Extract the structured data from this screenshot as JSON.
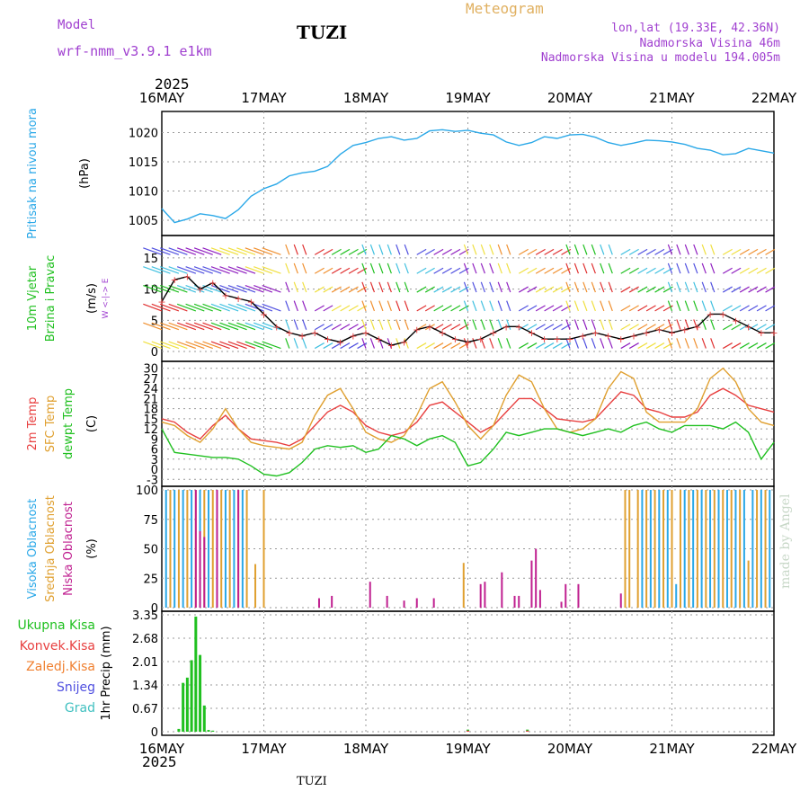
{
  "header": {
    "model_label": "Model",
    "model_name": "wrf-nmm_v3.9.1 e1km",
    "station": "TUZI",
    "product": "Meteogram",
    "lonlat": "lon,lat (19.33E, 42.36N)",
    "elevation": "Nadmorska Visina 46m",
    "model_elevation": "Nadmorska Visina u modelu 194.005m",
    "year_top": "2025",
    "year_bottom": "2025",
    "footer_station": "TUZI",
    "credit": "made by Angel"
  },
  "colors": {
    "pressure": "#2aa8e8",
    "temp2m": "#e84040",
    "sfc": "#e0a030",
    "dew": "#20c020",
    "high_cloud": "#2aa8e8",
    "mid_cloud": "#e0a030",
    "low_cloud": "#c02090",
    "precip_total": "#20c020",
    "precip_conv": "#e84040",
    "snow": "#5050e0",
    "hail": "#40c0c0"
  },
  "chart_data": {
    "type": "line",
    "x_dates": [
      "16MAY",
      "17MAY",
      "18MAY",
      "19MAY",
      "20MAY",
      "21MAY",
      "22MAY"
    ],
    "x_unit": "hours since 16MAY 00Z",
    "x_range": [
      0,
      144
    ],
    "panels": [
      {
        "id": "pressure",
        "labels": [
          "Pritisak na nivou mora"
        ],
        "unit": "(hPa)",
        "ylim": [
          1003,
          1023
        ],
        "yticks": [
          1005,
          1010,
          1015,
          1020
        ],
        "series": [
          {
            "name": "MSLP",
            "color": "#2aa8e8",
            "x": [
              0,
              3,
              6,
              9,
              12,
              15,
              18,
              21,
              24,
              27,
              30,
              33,
              36,
              39,
              42,
              45,
              48,
              51,
              54,
              57,
              60,
              63,
              66,
              69,
              72,
              75,
              78,
              81,
              84,
              87,
              90,
              93,
              96,
              99,
              102,
              105,
              108,
              111,
              114,
              117,
              120,
              123,
              126,
              129,
              132,
              135,
              138,
              141,
              144
            ],
            "y": [
              1007,
              1004.6,
              1005.2,
              1006.1,
              1005.8,
              1005.3,
              1006.8,
              1009.1,
              1010.4,
              1011.2,
              1012.6,
              1013.1,
              1013.4,
              1014.2,
              1016.3,
              1017.8,
              1018.3,
              1019.0,
              1019.3,
              1018.7,
              1019.0,
              1020.3,
              1020.5,
              1020.2,
              1020.4,
              1019.9,
              1019.6,
              1018.4,
              1017.8,
              1018.3,
              1019.3,
              1019.0,
              1019.6,
              1019.7,
              1019.2,
              1018.3,
              1017.8,
              1018.2,
              1018.7,
              1018.6,
              1018.4,
              1018.0,
              1017.3,
              1017.0,
              1016.2,
              1016.4,
              1017.3,
              1016.9,
              1016.5
            ]
          }
        ]
      },
      {
        "id": "wind",
        "labels": [
          "10m Vjetar",
          "Brzina i Pravac"
        ],
        "unit": "(m/s)",
        "compass": "W <-|-> E",
        "ylim": [
          -1,
          18
        ],
        "yticks": [
          0,
          5,
          10,
          15
        ],
        "series": [
          {
            "name": "wind speed",
            "color": "#000000",
            "x": [
              0,
              3,
              6,
              9,
              12,
              15,
              18,
              21,
              24,
              27,
              30,
              33,
              36,
              39,
              42,
              45,
              48,
              51,
              54,
              57,
              60,
              63,
              66,
              69,
              72,
              75,
              78,
              81,
              84,
              87,
              90,
              93,
              96,
              99,
              102,
              105,
              108,
              111,
              114,
              117,
              120,
              123,
              126,
              129,
              132,
              135,
              138,
              141,
              144
            ],
            "y": [
              8,
              11.5,
              12,
              10,
              11,
              9,
              8.5,
              8,
              6,
              4,
              3,
              2.5,
              3,
              2,
              1.5,
              2.5,
              3,
              2,
              1,
              1.5,
              3.5,
              4,
              3,
              2,
              1.5,
              2,
              3,
              4,
              4,
              3,
              2,
              2,
              2,
              2.5,
              3,
              2.5,
              2,
              2.5,
              3,
              3.5,
              3,
              3.5,
              4,
              6,
              6,
              5,
              4,
              3,
              3
            ]
          }
        ]
      },
      {
        "id": "temperature",
        "labels": [
          "2m Temp",
          "SFC Temp",
          "dewpt Temp"
        ],
        "unit": "(C)",
        "ylim": [
          -4,
          31
        ],
        "yticks": [
          -3,
          0,
          3,
          6,
          9,
          12,
          15,
          18,
          21,
          24,
          27,
          30
        ],
        "series": [
          {
            "name": "2m Temp",
            "color": "#e84040",
            "x": [
              0,
              3,
              6,
              9,
              12,
              15,
              18,
              21,
              24,
              27,
              30,
              33,
              36,
              39,
              42,
              45,
              48,
              51,
              54,
              57,
              60,
              63,
              66,
              69,
              72,
              75,
              78,
              81,
              84,
              87,
              90,
              93,
              96,
              99,
              102,
              105,
              108,
              111,
              114,
              117,
              120,
              123,
              126,
              129,
              132,
              135,
              138,
              141,
              144
            ],
            "y": [
              15,
              14,
              11,
              9,
              13,
              16,
              12,
              9,
              8.5,
              8,
              7,
              9,
              13,
              17,
              19,
              17,
              13,
              11,
              10,
              11,
              14,
              19,
              20,
              17,
              14,
              11,
              13,
              17,
              21,
              21,
              18,
              15,
              14.5,
              14,
              15,
              19,
              23,
              22,
              18,
              17,
              15.5,
              15.5,
              17,
              22,
              24,
              22,
              19,
              18,
              17
            ]
          },
          {
            "name": "SFC Temp",
            "color": "#e0a030",
            "x": [
              0,
              3,
              6,
              9,
              12,
              15,
              18,
              21,
              24,
              27,
              30,
              33,
              36,
              39,
              42,
              45,
              48,
              51,
              54,
              57,
              60,
              63,
              66,
              69,
              72,
              75,
              78,
              81,
              84,
              87,
              90,
              93,
              96,
              99,
              102,
              105,
              108,
              111,
              114,
              117,
              120,
              123,
              126,
              129,
              132,
              135,
              138,
              141,
              144
            ],
            "y": [
              14,
              13,
              10,
              8,
              12,
              18,
              12,
              8,
              7,
              6.5,
              6,
              8,
              16,
              22,
              24,
              18,
              11,
              9,
              8,
              10,
              16,
              24,
              26,
              20,
              13,
              9,
              13,
              22,
              28,
              26,
              18,
              12,
              11,
              12,
              15,
              24,
              29,
              27,
              17,
              14,
              14,
              14,
              18,
              27,
              30,
              26,
              18,
              14,
              13
            ]
          },
          {
            "name": "dewpt Temp",
            "color": "#20c020",
            "x": [
              0,
              3,
              6,
              9,
              12,
              15,
              18,
              21,
              24,
              27,
              30,
              33,
              36,
              39,
              42,
              45,
              48,
              51,
              54,
              57,
              60,
              63,
              66,
              69,
              72,
              75,
              78,
              81,
              84,
              87,
              90,
              93,
              96,
              99,
              102,
              105,
              108,
              111,
              114,
              117,
              120,
              123,
              126,
              129,
              132,
              135,
              138,
              141,
              144
            ],
            "y": [
              12,
              5,
              4.5,
              4,
              3.5,
              3.5,
              3,
              1,
              -1.5,
              -2,
              -1,
              2,
              6,
              7,
              6.5,
              7,
              5,
              6,
              10,
              9,
              7,
              9,
              10,
              8,
              1,
              2,
              6,
              11,
              10,
              11,
              12,
              12,
              11,
              10,
              11,
              12,
              11,
              13,
              14,
              12,
              11,
              13,
              13,
              13,
              12,
              14,
              11,
              3,
              8
            ]
          }
        ]
      },
      {
        "id": "cloud",
        "labels": [
          "Visoka Oblacnost",
          "Srednja Oblacnost",
          "Niska Oblacnost"
        ],
        "unit": "(%)",
        "ylim": [
          0,
          100
        ],
        "yticks": [
          0,
          25,
          50,
          75,
          100
        ],
        "series": [
          {
            "name": "Visoka Oblacnost",
            "color": "#2aa8e8",
            "x": [
              1,
              3,
              5,
              7,
              9,
              11,
              13,
              15,
              17,
              19,
              113,
              115,
              117,
              119,
              121,
              123,
              125,
              127,
              129,
              131,
              133,
              135,
              137,
              139,
              141,
              143
            ],
            "y": [
              100,
              100,
              100,
              100,
              100,
              100,
              100,
              100,
              100,
              100,
              100,
              100,
              100,
              100,
              20,
              100,
              100,
              100,
              100,
              100,
              100,
              100,
              100,
              100,
              100,
              100
            ]
          },
          {
            "name": "Srednja Oblacnost",
            "color": "#e0a030",
            "x": [
              2,
              4,
              6,
              8,
              10,
              12,
              14,
              16,
              18,
              20,
              22,
              24,
              71,
              109,
              110,
              112,
              114,
              116,
              118,
              120,
              122,
              124,
              126,
              128,
              130,
              132,
              134,
              136,
              138,
              140,
              142
            ],
            "y": [
              100,
              100,
              100,
              100,
              100,
              100,
              100,
              100,
              100,
              100,
              37,
              100,
              38,
              100,
              100,
              100,
              100,
              100,
              100,
              100,
              100,
              100,
              100,
              100,
              100,
              100,
              100,
              100,
              40,
              100,
              100
            ]
          },
          {
            "name": "Niska Oblacnost",
            "color": "#c02090",
            "x": [
              8,
              9,
              10,
              13,
              18,
              37,
              40,
              49,
              53,
              57,
              60,
              64,
              75,
              76,
              80,
              83,
              84,
              87,
              88,
              89,
              94,
              95,
              98,
              108
            ],
            "y": [
              100,
              65,
              60,
              100,
              100,
              8,
              10,
              22,
              10,
              6,
              8,
              8,
              20,
              22,
              30,
              10,
              10,
              40,
              50,
              15,
              5,
              20,
              20,
              12
            ]
          }
        ]
      },
      {
        "id": "precip",
        "labels": [
          "Ukupna Kisa",
          "Konvek.Kisa",
          "Zaledj.Kisa",
          "Snijeg",
          "Grad"
        ],
        "unit": "1hr Precip (mm)",
        "ylim": [
          0,
          3.35
        ],
        "yticks": [
          0,
          0.67,
          1.34,
          2.01,
          2.68,
          3.35
        ],
        "series": [
          {
            "name": "Ukupna Kisa",
            "color": "#20c020",
            "x": [
              4,
              5,
              6,
              7,
              8,
              9,
              10,
              11,
              12,
              72,
              86
            ],
            "y": [
              0.08,
              1.4,
              1.55,
              2.05,
              3.3,
              2.2,
              0.75,
              0.05,
              0.03,
              0.06,
              0.06
            ]
          },
          {
            "name": "Konvek.Kisa",
            "color": "#e84040",
            "x": [
              72,
              86
            ],
            "y": [
              0.03,
              0.03
            ]
          }
        ]
      }
    ],
    "wind_barb_colors": [
      "#f0e040",
      "#f09030",
      "#e03030",
      "#20c020",
      "#40c0e0",
      "#5050e0",
      "#9020c0"
    ]
  }
}
